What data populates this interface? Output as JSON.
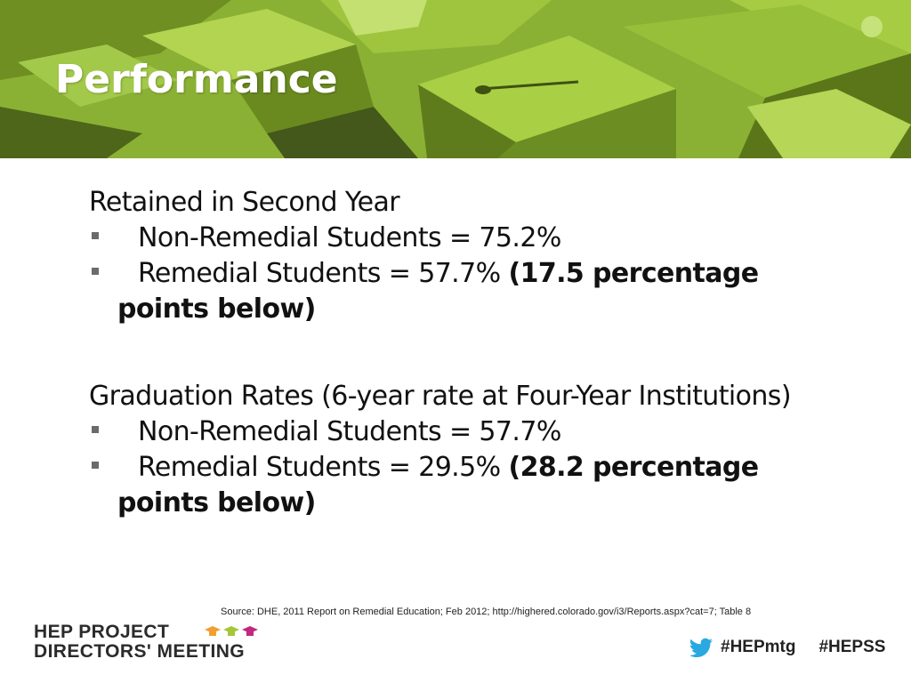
{
  "slide": {
    "title": "Performance"
  },
  "section1": {
    "heading": "Retained in Second Year",
    "bullets": [
      {
        "text": "Non-Remedial Students = 75.2%",
        "note": ""
      },
      {
        "text": "Remedial Students = 57.7%   ",
        "note": "(17.5 percentage points below)"
      }
    ]
  },
  "section2": {
    "heading": "Graduation Rates (6-year rate at Four-Year Institutions)",
    "bullets": [
      {
        "text": "Non-Remedial Students = 57.7%",
        "note": ""
      },
      {
        "text": "Remedial Students = 29.5%   ",
        "note": "(28.2  percentage points below)"
      }
    ]
  },
  "source": "Source: DHE, 2011 Report on Remedial Education; Feb 2012; http://highered.colorado.gov/i3/Reports.aspx?cat=7; Table 8",
  "footer": {
    "logo_line1": "HEP PROJECT",
    "logo_line2": "DIRECTORS' MEETING",
    "hashtag1": "#HEPmtg",
    "hashtag2": "#HEPSS",
    "twitter_icon": "twitter-bird-icon",
    "cap_icons": [
      "graduation-cap-icon",
      "graduation-cap-icon",
      "graduation-cap-icon"
    ]
  },
  "colors": {
    "banner_green": "#8bb134",
    "cap_orange": "#f0a030",
    "cap_green": "#a6c63a",
    "cap_magenta": "#c2287e",
    "twitter_blue": "#2aa9e0"
  }
}
